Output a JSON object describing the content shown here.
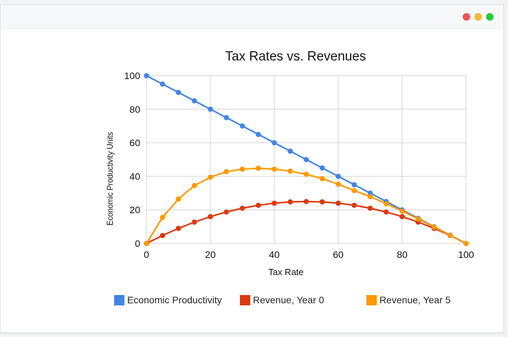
{
  "window": {
    "controls": {
      "close_color": "#f2544f",
      "minimize_color": "#f6b63a",
      "maximize_color": "#2cc840"
    }
  },
  "chart_data": {
    "type": "line",
    "title": "Tax Rates vs. Revenues",
    "xlabel": "Tax Rate",
    "ylabel": "Economic Productivity Units",
    "xlim": [
      0,
      100
    ],
    "ylim": [
      0,
      100
    ],
    "x_ticks": [
      0,
      20,
      40,
      60,
      80,
      100
    ],
    "y_ticks": [
      0,
      20,
      40,
      60,
      80,
      100
    ],
    "grid": true,
    "legend_position": "bottom",
    "x": [
      0,
      5,
      10,
      15,
      20,
      25,
      30,
      35,
      40,
      45,
      50,
      55,
      60,
      65,
      70,
      75,
      80,
      85,
      90,
      95,
      100
    ],
    "series": [
      {
        "name": "Economic Productivity",
        "color": "#4285e4",
        "values": [
          100,
          95,
          90,
          85,
          80,
          75,
          70,
          65,
          60,
          55,
          50,
          45,
          40,
          35,
          30,
          25,
          20,
          15,
          10,
          5,
          0
        ]
      },
      {
        "name": "Revenue, Year 0",
        "color": "#dc3912",
        "values": [
          0,
          4.75,
          9,
          12.75,
          16,
          18.75,
          21,
          22.75,
          24,
          24.75,
          25,
          24.75,
          24,
          22.75,
          21,
          18.75,
          16,
          12.75,
          9,
          4.75,
          0
        ]
      },
      {
        "name": "Revenue, Year 5",
        "color": "#ff9900",
        "values": [
          0,
          15.5,
          26.5,
          34.5,
          39.5,
          42.8,
          44.3,
          44.8,
          44.3,
          43.1,
          41.2,
          38.6,
          35.3,
          31.5,
          27.9,
          23.7,
          19.3,
          14.6,
          9.8,
          4.9,
          0
        ]
      }
    ]
  }
}
